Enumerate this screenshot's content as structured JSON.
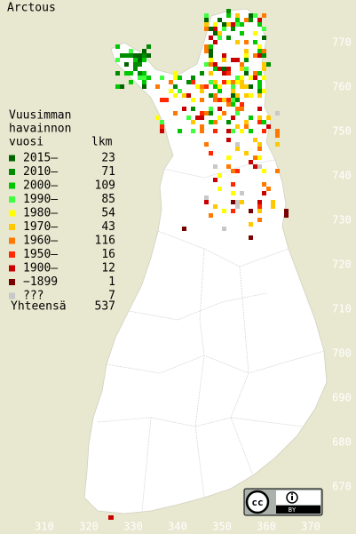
{
  "title": "Arctous",
  "legend": {
    "heading": [
      "Vuusimman",
      "havainnon",
      "vuosi"
    ],
    "count_heading": "lkm",
    "items": [
      {
        "label": "2015–",
        "count": 23,
        "color": "#006400"
      },
      {
        "label": "2010–",
        "count": 71,
        "color": "#008c00"
      },
      {
        "label": "2000–",
        "count": 109,
        "color": "#00c800"
      },
      {
        "label": "1990–",
        "count": 85,
        "color": "#40ff40"
      },
      {
        "label": "1980–",
        "count": 54,
        "color": "#ffff00"
      },
      {
        "label": "1970–",
        "count": 43,
        "color": "#ffc800"
      },
      {
        "label": "1960–",
        "count": 116,
        "color": "#ff7800"
      },
      {
        "label": "1950–",
        "count": 16,
        "color": "#ff2800"
      },
      {
        "label": "1900–",
        "count": 12,
        "color": "#c80000"
      },
      {
        "label": "−1899",
        "count": 1,
        "color": "#780000"
      },
      {
        "label": "???",
        "count": 7,
        "color": "#c8c8c8"
      }
    ],
    "total_label": "Yhteensä",
    "total": 537
  },
  "x_labels": [
    310,
    320,
    330,
    340,
    350,
    360,
    370
  ],
  "y_labels": [
    770,
    760,
    750,
    740,
    730,
    720,
    710,
    700,
    690,
    680,
    670
  ],
  "badge": {
    "cc": "cc",
    "by": "BY"
  }
}
